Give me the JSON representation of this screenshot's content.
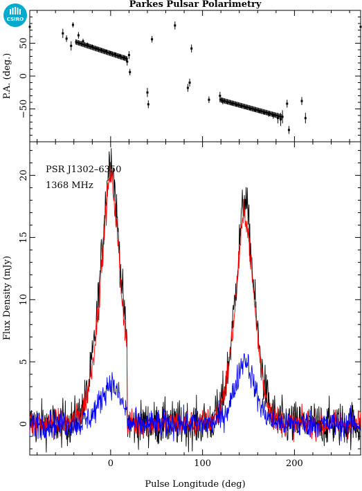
{
  "title": "Parkes Pulsar Polarimetry",
  "logo_text": "CSIRO",
  "colors": {
    "total": "#000000",
    "linear": "#ff0000",
    "circular": "#0000ff",
    "logo": "#00a9ce"
  },
  "chart_data": [
    {
      "type": "scatter",
      "panel": "position-angle",
      "ylabel": "P.A. (deg.)",
      "xlim": [
        -88,
        272
      ],
      "ylim": [
        -100,
        100
      ],
      "yticks": [
        50,
        0,
        -50
      ],
      "points": [
        {
          "x": -88,
          "y": 75,
          "err": 2
        },
        {
          "x": -52,
          "y": 65,
          "err": 7
        },
        {
          "x": -48,
          "y": 57,
          "err": 5
        },
        {
          "x": -43,
          "y": 46,
          "err": 7
        },
        {
          "x": -41,
          "y": 78,
          "err": 4
        },
        {
          "x": -35,
          "y": 62,
          "err": 5
        },
        {
          "x": -30,
          "y": 53,
          "err": 4
        },
        {
          "x": -25,
          "y": 48,
          "err": 3
        },
        {
          "x": -20,
          "y": 45,
          "err": 3
        },
        {
          "x": -15,
          "y": 42,
          "err": 2
        },
        {
          "x": -10,
          "y": 40,
          "err": 2
        },
        {
          "x": -5,
          "y": 38,
          "err": 2
        },
        {
          "x": 0,
          "y": 36,
          "err": 2
        },
        {
          "x": 5,
          "y": 34,
          "err": 2
        },
        {
          "x": 10,
          "y": 31,
          "err": 3
        },
        {
          "x": 15,
          "y": 28,
          "err": 4
        },
        {
          "x": 18,
          "y": 22,
          "err": 6
        },
        {
          "x": 20,
          "y": 32,
          "err": 6
        },
        {
          "x": 21,
          "y": 6,
          "err": 5
        },
        {
          "x": 40,
          "y": -25,
          "err": 7
        },
        {
          "x": 41,
          "y": -43,
          "err": 6
        },
        {
          "x": 45,
          "y": 56,
          "err": 5
        },
        {
          "x": 70,
          "y": 77,
          "err": 6
        },
        {
          "x": 84,
          "y": -18,
          "err": 6
        },
        {
          "x": 86,
          "y": -10,
          "err": 6
        },
        {
          "x": 88,
          "y": 42,
          "err": 6
        },
        {
          "x": 107,
          "y": -36,
          "err": 5
        },
        {
          "x": 119,
          "y": -30,
          "err": 6
        },
        {
          "x": 122,
          "y": -38,
          "err": 5
        },
        {
          "x": 127,
          "y": -40,
          "err": 3
        },
        {
          "x": 132,
          "y": -42,
          "err": 3
        },
        {
          "x": 137,
          "y": -44,
          "err": 2
        },
        {
          "x": 142,
          "y": -46,
          "err": 2
        },
        {
          "x": 147,
          "y": -48,
          "err": 2
        },
        {
          "x": 152,
          "y": -50,
          "err": 2
        },
        {
          "x": 157,
          "y": -52,
          "err": 2
        },
        {
          "x": 162,
          "y": -54,
          "err": 3
        },
        {
          "x": 167,
          "y": -56,
          "err": 3
        },
        {
          "x": 172,
          "y": -58,
          "err": 4
        },
        {
          "x": 177,
          "y": -60,
          "err": 5
        },
        {
          "x": 182,
          "y": -64,
          "err": 8
        },
        {
          "x": 185,
          "y": -66,
          "err": 10
        },
        {
          "x": 187,
          "y": -62,
          "err": 10
        },
        {
          "x": 192,
          "y": -42,
          "err": 6
        },
        {
          "x": 194,
          "y": -82,
          "err": 6
        },
        {
          "x": 208,
          "y": -38,
          "err": 6
        },
        {
          "x": 212,
          "y": -64,
          "err": 8
        },
        {
          "x": 272,
          "y": 75,
          "err": 2
        }
      ]
    },
    {
      "type": "line",
      "panel": "profile",
      "xlabel": "Pulse Longitude (deg)",
      "ylabel": "Flux Density (mJy)",
      "xlim": [
        -88,
        272
      ],
      "ylim": [
        -2.5,
        22.7
      ],
      "xticks": [
        0,
        100,
        200
      ],
      "yticks": [
        0,
        5,
        10,
        15,
        20
      ],
      "annotations": [
        "PSR J1302–6350",
        "1368 MHz"
      ],
      "components": [
        {
          "center": 0,
          "peak": 21.5,
          "linear_peak": 20.0,
          "circular_peak": 3.3
        },
        {
          "center": 146,
          "peak": 18.2,
          "linear_peak": 17.0,
          "circular_peak": 5.3
        }
      ],
      "series": [
        {
          "name": "",
          "key": "total",
          "noise": 1.3
        },
        {
          "name": "",
          "key": "linear",
          "noise": 0.8
        },
        {
          "name": "",
          "key": "circular",
          "noise": 0.8
        }
      ]
    }
  ]
}
